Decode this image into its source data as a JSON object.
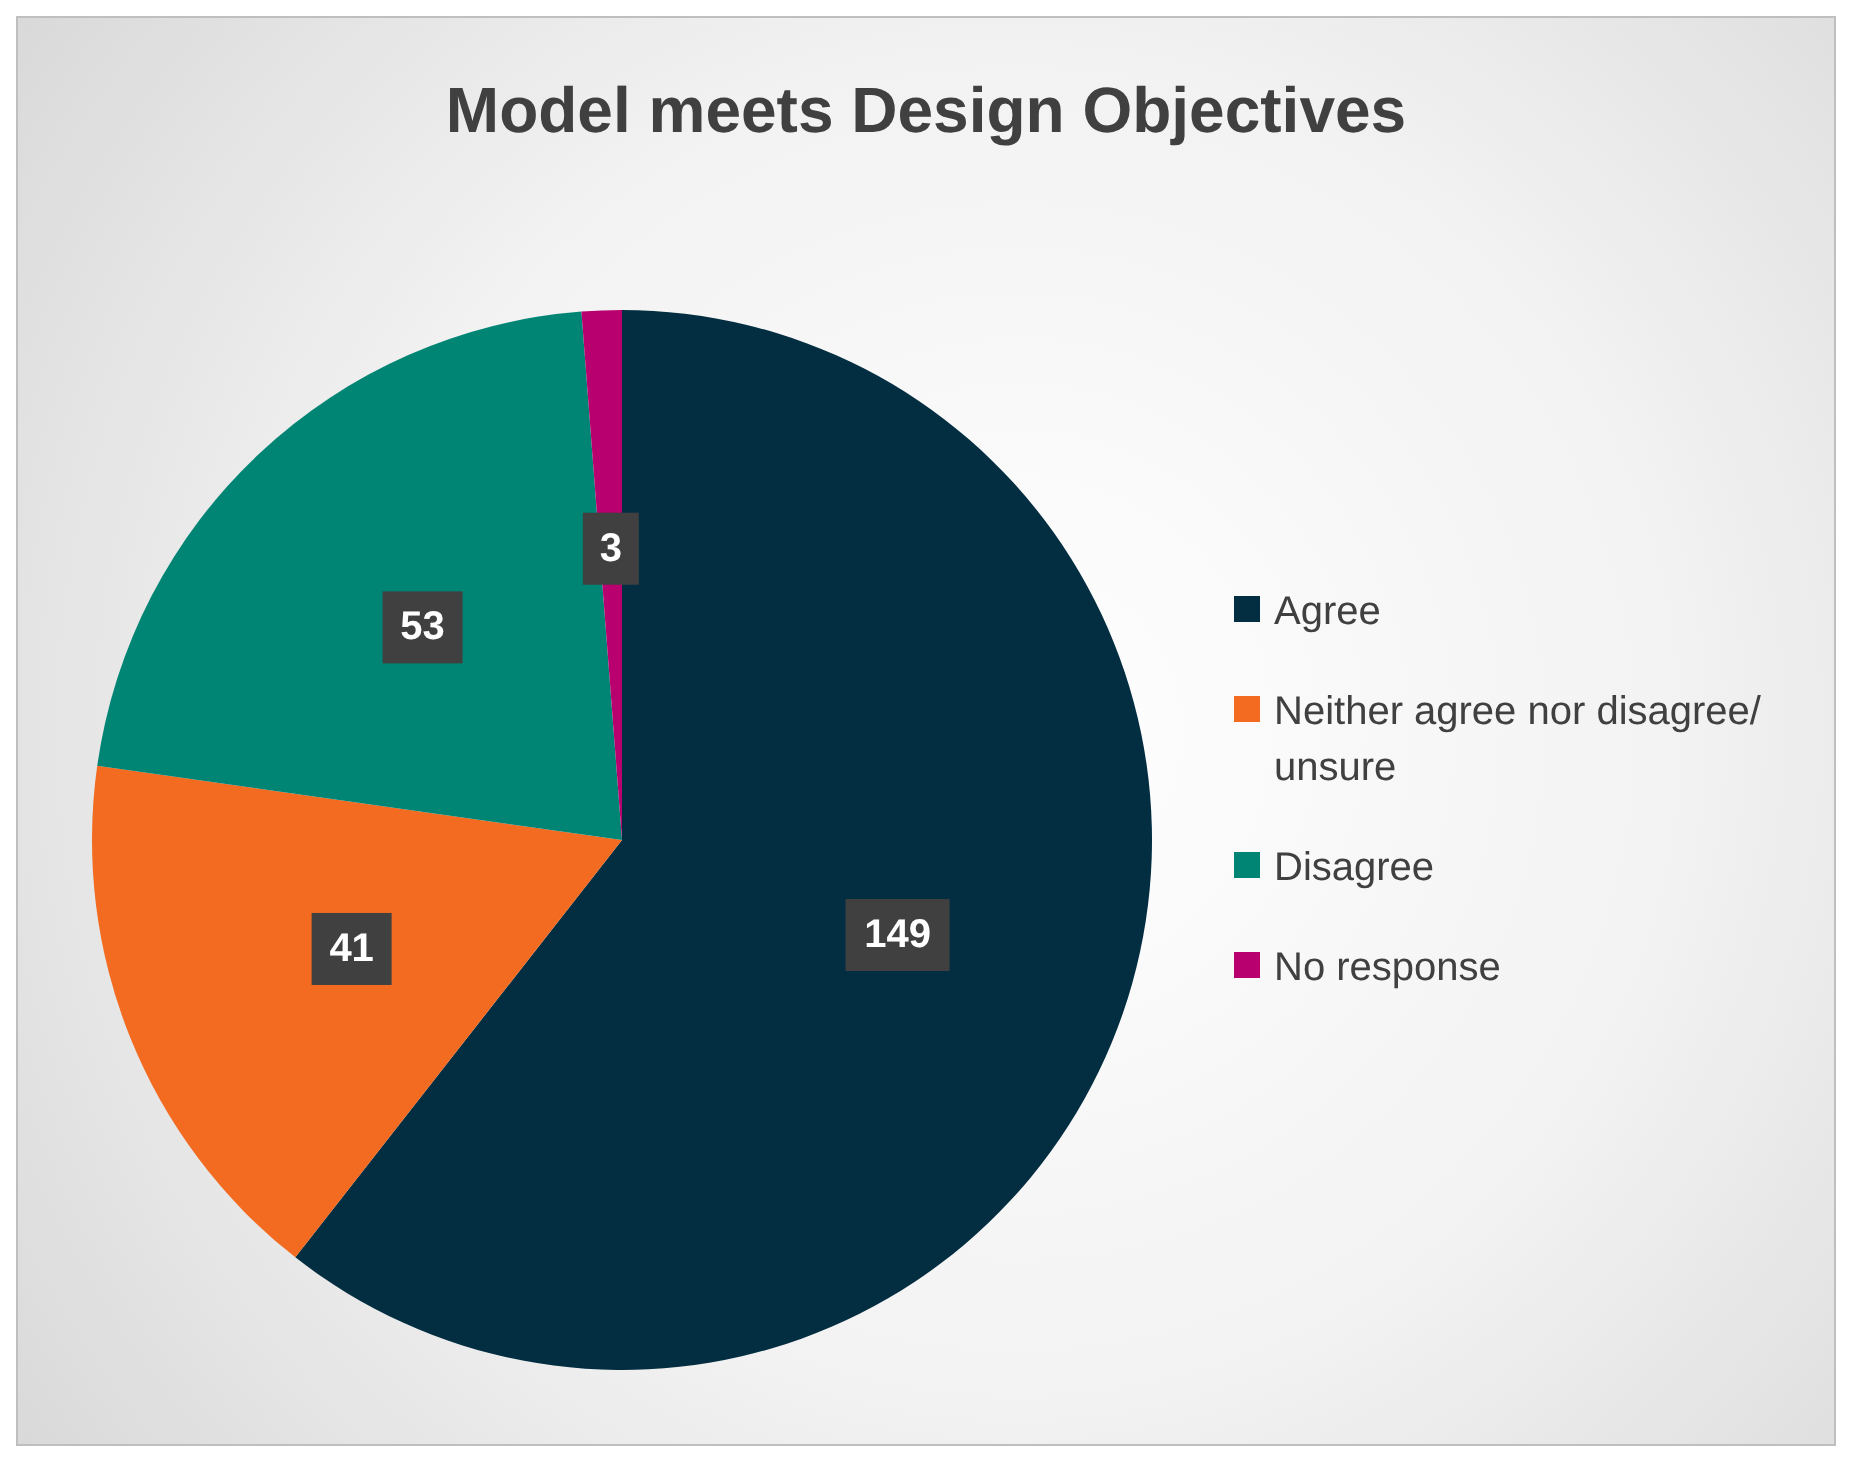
{
  "chart_data": {
    "type": "pie",
    "title": "Model meets Design Objectives",
    "categories": [
      "Agree",
      "Neither agree nor disagree/ unsure",
      "Disagree",
      "No response"
    ],
    "values": [
      149,
      41,
      53,
      3
    ],
    "colors": [
      "#032e42",
      "#f26b21",
      "#008575",
      "#b8006e"
    ],
    "data_labels": true,
    "legend": "right"
  }
}
